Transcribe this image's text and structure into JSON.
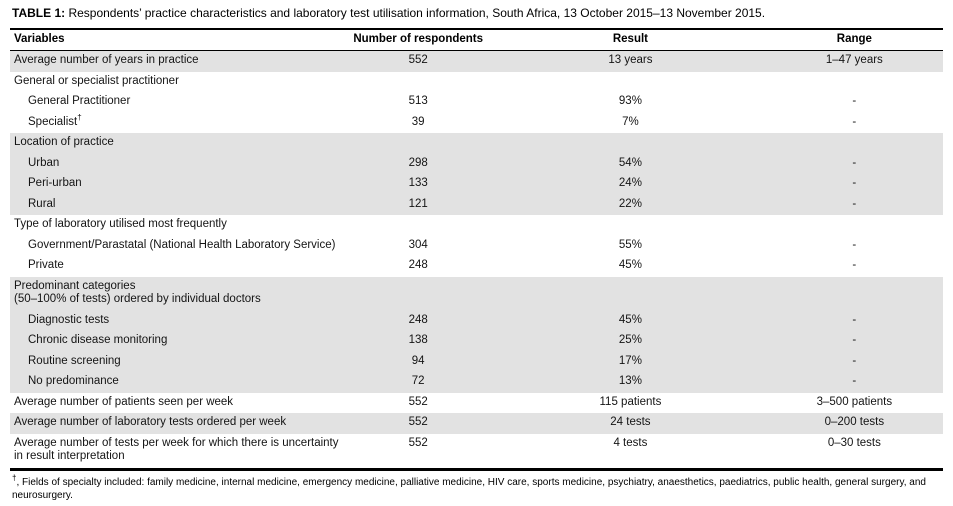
{
  "title": {
    "label": "TABLE 1:",
    "text": " Respondents’ practice characteristics and laboratory test utilisation information, South Africa, 13 October 2015–13 November 2015."
  },
  "table": {
    "columns": [
      "Variables",
      "Number of respondents",
      "Result",
      "Range"
    ],
    "rows": [
      {
        "kind": "data",
        "indent": false,
        "shaded": true,
        "variable": "Average number of years in practice",
        "respondents": "552",
        "result": "13 years",
        "range": "1–47 years"
      },
      {
        "kind": "section",
        "shaded": false,
        "variable": "General or specialist practitioner"
      },
      {
        "kind": "data",
        "indent": true,
        "shaded": false,
        "variable": "General Practitioner",
        "respondents": "513",
        "result": "93%",
        "range": "-"
      },
      {
        "kind": "data",
        "indent": true,
        "shaded": false,
        "variable": "Specialist",
        "sup": "†",
        "respondents": "39",
        "result": "7%",
        "range": "-"
      },
      {
        "kind": "section",
        "shaded": true,
        "variable": "Location of practice"
      },
      {
        "kind": "data",
        "indent": true,
        "shaded": true,
        "variable": "Urban",
        "respondents": "298",
        "result": "54%",
        "range": "-"
      },
      {
        "kind": "data",
        "indent": true,
        "shaded": true,
        "variable": "Peri-urban",
        "respondents": "133",
        "result": "24%",
        "range": "-"
      },
      {
        "kind": "data",
        "indent": true,
        "shaded": true,
        "variable": "Rural",
        "respondents": "121",
        "result": "22%",
        "range": "-"
      },
      {
        "kind": "section",
        "shaded": false,
        "variable": "Type of laboratory utilised most frequently"
      },
      {
        "kind": "data",
        "indent": true,
        "shaded": false,
        "variable": "Government/Parastatal (National Health Laboratory Service)",
        "respondents": "304",
        "result": "55%",
        "range": "-"
      },
      {
        "kind": "data",
        "indent": true,
        "shaded": false,
        "variable": "Private",
        "respondents": "248",
        "result": "45%",
        "range": "-"
      },
      {
        "kind": "section",
        "shaded": true,
        "variable": "Predominant categories\n(50–100% of tests) ordered by individual doctors"
      },
      {
        "kind": "data",
        "indent": true,
        "shaded": true,
        "variable": "Diagnostic tests",
        "respondents": "248",
        "result": "45%",
        "range": "-"
      },
      {
        "kind": "data",
        "indent": true,
        "shaded": true,
        "variable": "Chronic disease monitoring",
        "respondents": "138",
        "result": "25%",
        "range": "-"
      },
      {
        "kind": "data",
        "indent": true,
        "shaded": true,
        "variable": "Routine screening",
        "respondents": "94",
        "result": "17%",
        "range": "-"
      },
      {
        "kind": "data",
        "indent": true,
        "shaded": true,
        "variable": "No predominance",
        "respondents": "72",
        "result": "13%",
        "range": "-"
      },
      {
        "kind": "data",
        "indent": false,
        "shaded": false,
        "variable": "Average number of patients seen per week",
        "respondents": "552",
        "result": "115 patients",
        "range": "3–500 patients"
      },
      {
        "kind": "data",
        "indent": false,
        "shaded": true,
        "variable": "Average number of laboratory tests ordered per week",
        "respondents": "552",
        "result": "24 tests",
        "range": "0–200 tests"
      },
      {
        "kind": "data",
        "indent": false,
        "shaded": false,
        "variable": "Average number of tests per week for which there is uncertainty in result interpretation",
        "respondents": "552",
        "result": "4 tests",
        "range": "0–30 tests"
      }
    ]
  },
  "footnote": {
    "symbol": "†",
    "text": ", Fields of specialty included: family medicine, internal medicine, emergency medicine, palliative medicine, HIV care, sports medicine, psychiatry, anaesthetics, paediatrics, public health, general surgery, and neurosurgery."
  },
  "colors": {
    "shaded_row": "#e2e2e2",
    "rule": "#000000",
    "text": "#141414"
  }
}
